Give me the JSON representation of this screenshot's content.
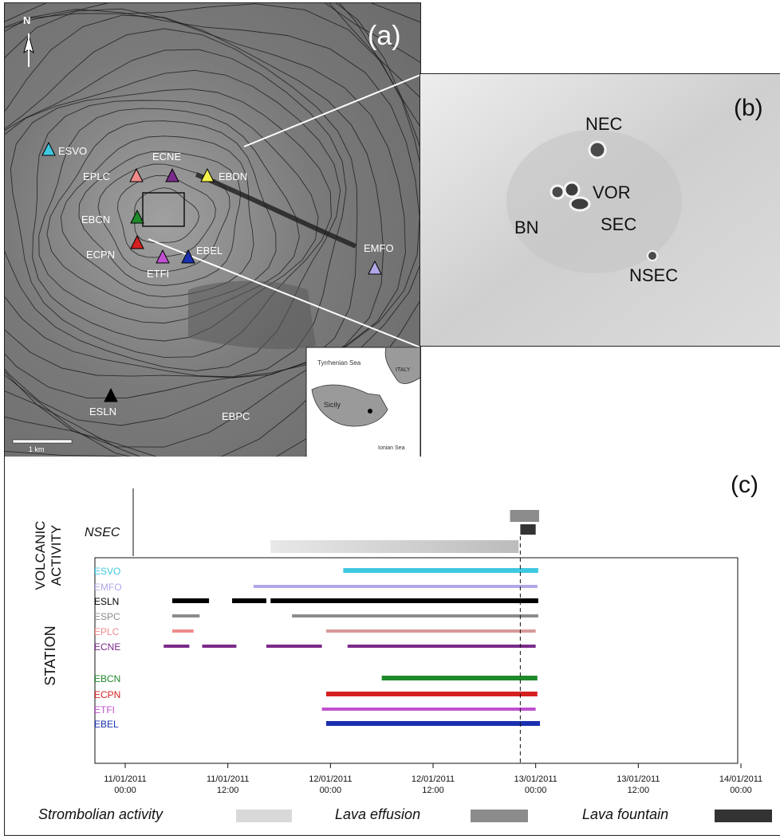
{
  "panel_a": {
    "label": "(a)",
    "north": "N",
    "scale_label": "1 km",
    "stations": [
      {
        "name": "ESVO",
        "color": "#3ec8e0"
      },
      {
        "name": "EPLC",
        "color": "#f08a8a"
      },
      {
        "name": "ECNE",
        "color": "#7a2a8a"
      },
      {
        "name": "EBDN",
        "color": "#f4f24a"
      },
      {
        "name": "EBCN",
        "color": "#1f8a2a"
      },
      {
        "name": "ECPN",
        "color": "#d62020"
      },
      {
        "name": "ETFI",
        "color": "#c050d0"
      },
      {
        "name": "EBEL",
        "color": "#1a30b0"
      },
      {
        "name": "EMFO",
        "color": "#b0a8e8"
      },
      {
        "name": "ESLN",
        "color": "#000000"
      }
    ],
    "text_labels": [
      {
        "name": "EBPC"
      }
    ],
    "inset": {
      "sea1": "Tyrrhenian Sea",
      "sea2": "Ionian Sea",
      "island": "Sicily",
      "country": "ITALY"
    }
  },
  "panel_b": {
    "label": "(b)",
    "craters": [
      "NEC",
      "VOR",
      "BN",
      "SEC",
      "NSEC"
    ]
  },
  "panel_c": {
    "label": "(c)",
    "volcanic_title": [
      "VOLCANIC",
      "ACTIVITY"
    ],
    "station_title": "STATION",
    "nsec_label": "NSEC"
  },
  "legend": {
    "strombolian": "Strombolian activity",
    "effusion": "Lava effusion",
    "fountain": "Lava fountain"
  },
  "chart_data": {
    "type": "gantt",
    "x_unit": "hours since 11/01/2011 00:00",
    "xlim": [
      0,
      72
    ],
    "ticks": [
      {
        "date": "11/01/2011",
        "time": "00:00"
      },
      {
        "date": "11/01/2011",
        "time": "12:00"
      },
      {
        "date": "12/01/2011",
        "time": "00:00"
      },
      {
        "date": "12/01/2011",
        "time": "12:00"
      },
      {
        "date": "13/01/2011",
        "time": "00:00"
      },
      {
        "date": "13/01/2011",
        "time": "12:00"
      },
      {
        "date": "14/01/2011",
        "time": "00:00"
      }
    ],
    "fountain_marker_h": 46.2,
    "activity": [
      {
        "kind": "strombolian",
        "segments": [
          [
            17,
            46
          ]
        ]
      },
      {
        "kind": "effusion",
        "segments": [
          [
            45,
            48.4
          ]
        ]
      },
      {
        "kind": "fountain",
        "segments": [
          [
            46.2,
            48
          ]
        ]
      }
    ],
    "stations": [
      {
        "name": "ESVO",
        "color": "#3ec8e0",
        "segments": [
          [
            25.5,
            48.3
          ]
        ]
      },
      {
        "name": "EMFO",
        "color": "#b0a8e8",
        "segments": [
          [
            15,
            48.2
          ]
        ]
      },
      {
        "name": "ESLN",
        "color": "#000000",
        "segments": [
          [
            5.5,
            9.8
          ],
          [
            12.5,
            16.5
          ],
          [
            17,
            48.3
          ]
        ]
      },
      {
        "name": "ESPC",
        "color": "#8c8c8c",
        "segments": [
          [
            5.5,
            8.7
          ],
          [
            19.5,
            48.3
          ]
        ]
      },
      {
        "name": "EPLC",
        "color": "#f08a8a",
        "segments": [
          [
            5.5,
            8
          ]
        ],
        "extra": [
          {
            "segment": [
              23.5,
              48
            ],
            "color": "#d89a9a"
          }
        ]
      },
      {
        "name": "ECNE",
        "color": "#7a2a8a",
        "segments": [
          [
            4.5,
            7.5
          ],
          [
            9,
            13
          ],
          [
            16.5,
            23
          ],
          [
            26,
            48
          ]
        ]
      },
      {
        "name": "EBCN",
        "color": "#1f8a2a",
        "segments": [
          [
            30,
            48.2
          ]
        ]
      },
      {
        "name": "ECPN",
        "color": "#d62020",
        "segments": [
          [
            23.5,
            48.2
          ]
        ]
      },
      {
        "name": "ETFI",
        "color": "#c050d0",
        "segments": [
          [
            23,
            48
          ]
        ]
      },
      {
        "name": "EBEL",
        "color": "#1a30b0",
        "segments": [
          [
            23.5,
            48.5
          ]
        ]
      }
    ]
  }
}
